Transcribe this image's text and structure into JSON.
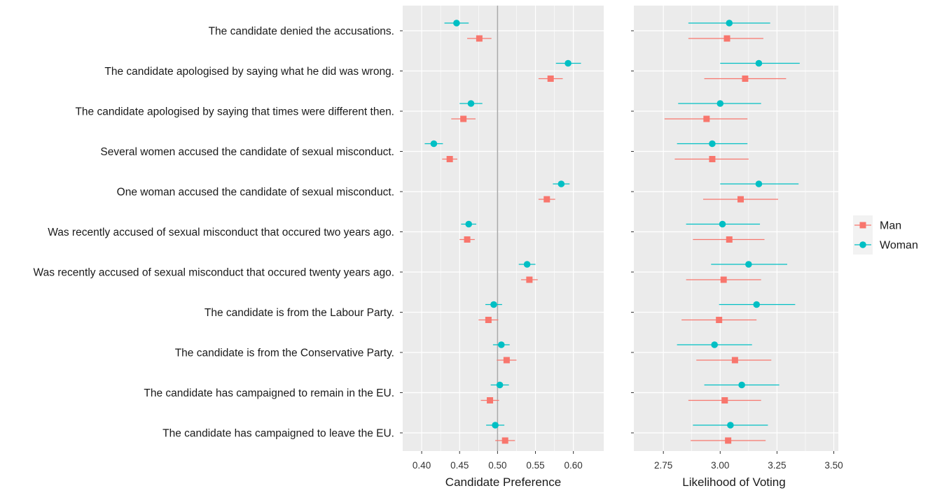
{
  "chart_data": {
    "type": "scatter",
    "categories": [
      "The candidate denied the accusations.",
      "The candidate apologised by saying what he did was wrong.",
      "The candidate apologised by saying that times were different then.",
      "Several women accused the candidate of sexual misconduct.",
      "One woman accused the candidate of sexual misconduct.",
      "Was recently accused of sexual misconduct that occured two years ago.",
      "Was recently accused of sexual misconduct that occured twenty years ago.",
      "The candidate is from the Labour Party.",
      "The candidate is from the Conservative Party.",
      "The candidate has campaigned to remain in the EU.",
      "The candidate has campaigned to leave the EU."
    ],
    "legend": {
      "entries": [
        {
          "name": "Man",
          "color": "#F8766D",
          "shape": "square"
        },
        {
          "name": "Woman",
          "color": "#00BFC4",
          "shape": "circle"
        }
      ],
      "placement": "right"
    },
    "panels": [
      {
        "xlabel": "Candidate Preference",
        "xlim": [
          0.375,
          0.64
        ],
        "xticks": [
          0.4,
          0.45,
          0.5,
          0.55,
          0.6
        ],
        "xtick_labels": [
          "0.40",
          "0.45",
          "0.50",
          "0.55",
          "0.60"
        ],
        "reference_line": 0.5,
        "series": [
          {
            "name": "Woman",
            "values": [
              0.446,
              0.593,
              0.465,
              0.416,
              0.584,
              0.462,
              0.539,
              0.495,
              0.505,
              0.503,
              0.497
            ],
            "ci_low": [
              0.43,
              0.577,
              0.45,
              0.404,
              0.573,
              0.452,
              0.528,
              0.484,
              0.494,
              0.491,
              0.485
            ],
            "ci_high": [
              0.462,
              0.61,
              0.48,
              0.428,
              0.595,
              0.472,
              0.55,
              0.506,
              0.516,
              0.515,
              0.509
            ]
          },
          {
            "name": "Man",
            "values": [
              0.476,
              0.57,
              0.455,
              0.437,
              0.565,
              0.46,
              0.542,
              0.488,
              0.512,
              0.49,
              0.51
            ],
            "ci_low": [
              0.46,
              0.554,
              0.439,
              0.427,
              0.554,
              0.45,
              0.531,
              0.475,
              0.499,
              0.478,
              0.497
            ],
            "ci_high": [
              0.492,
              0.586,
              0.471,
              0.447,
              0.576,
              0.47,
              0.553,
              0.501,
              0.525,
              0.502,
              0.523
            ]
          }
        ]
      },
      {
        "xlabel": "Likelihood of Voting",
        "xlim": [
          2.62,
          3.52
        ],
        "xticks": [
          2.75,
          3.0,
          3.25,
          3.5
        ],
        "xtick_labels": [
          "2.75",
          "3.00",
          "3.25",
          "3.50"
        ],
        "series": [
          {
            "name": "Woman",
            "values": [
              3.04,
              3.17,
              3.0,
              2.965,
              3.17,
              3.01,
              3.125,
              3.16,
              2.975,
              3.095,
              3.045
            ],
            "ci_low": [
              2.86,
              3.0,
              2.815,
              2.81,
              3.0,
              2.85,
              2.96,
              2.995,
              2.81,
              2.93,
              2.88
            ],
            "ci_high": [
              3.22,
              3.35,
              3.18,
              3.12,
              3.345,
              3.175,
              3.295,
              3.33,
              3.14,
              3.26,
              3.21
            ]
          },
          {
            "name": "Man",
            "values": [
              3.03,
              3.11,
              2.94,
              2.965,
              3.09,
              3.04,
              3.015,
              2.995,
              3.065,
              3.02,
              3.035
            ],
            "ci_low": [
              2.86,
              2.93,
              2.755,
              2.8,
              2.925,
              2.88,
              2.85,
              2.83,
              2.895,
              2.86,
              2.87
            ],
            "ci_high": [
              3.19,
              3.29,
              3.12,
              3.125,
              3.255,
              3.195,
              3.18,
              3.16,
              3.225,
              3.18,
              3.2
            ]
          }
        ]
      }
    ]
  }
}
